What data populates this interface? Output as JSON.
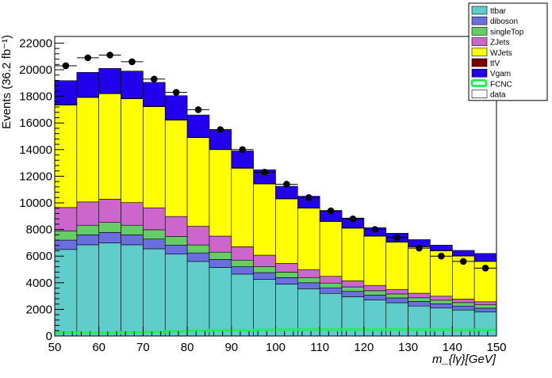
{
  "chart_data": {
    "type": "bar",
    "stacked": true,
    "title": "",
    "xlabel": "m_{lγ}[GeV]",
    "ylabel": "Events (36.2 fb⁻¹)",
    "xlim": [
      50,
      150
    ],
    "ylim": [
      0,
      22500
    ],
    "x_bin_edges": [
      50,
      55,
      60,
      65,
      70,
      75,
      80,
      85,
      90,
      95,
      100,
      105,
      110,
      115,
      120,
      125,
      130,
      135,
      140,
      145,
      150
    ],
    "x_ticks": [
      "50",
      "60",
      "70",
      "80",
      "90",
      "100",
      "110",
      "120",
      "130",
      "140",
      "150"
    ],
    "y_ticks": [
      "0",
      "2000",
      "4000",
      "6000",
      "8000",
      "10000",
      "12000",
      "14000",
      "16000",
      "18000",
      "20000",
      "22000"
    ],
    "legend_position": "top-right",
    "series": [
      {
        "name": "ttbar",
        "color": "#5fcdca",
        "values": [
          6500,
          6850,
          7000,
          6850,
          6550,
          6150,
          5600,
          5150,
          4650,
          4250,
          3900,
          3550,
          3200,
          2950,
          2700,
          2500,
          2250,
          2100,
          1950,
          1800
        ]
      },
      {
        "name": "diboson",
        "color": "#6a6fe0",
        "values": [
          700,
          750,
          780,
          750,
          730,
          680,
          640,
          600,
          550,
          510,
          480,
          450,
          420,
          400,
          380,
          360,
          340,
          320,
          300,
          290
        ]
      },
      {
        "name": "singleTop",
        "color": "#66cc66",
        "values": [
          700,
          720,
          750,
          720,
          700,
          650,
          600,
          550,
          500,
          460,
          420,
          390,
          360,
          340,
          320,
          300,
          280,
          270,
          260,
          250
        ]
      },
      {
        "name": "ZJets",
        "color": "#cc66cc",
        "values": [
          1750,
          1750,
          1750,
          1700,
          1650,
          1500,
          1400,
          1200,
          1000,
          850,
          650,
          600,
          500,
          450,
          400,
          340,
          340,
          300,
          260,
          230
        ]
      },
      {
        "name": "WJets",
        "color": "#ffff00",
        "values": [
          7700,
          7850,
          7920,
          7800,
          7600,
          7230,
          6660,
          6500,
          5900,
          5350,
          4850,
          4610,
          4120,
          3960,
          3700,
          3550,
          3490,
          3410,
          3230,
          3030
        ]
      },
      {
        "name": "ttV",
        "color": "#7a0000",
        "values": [
          30,
          30,
          30,
          30,
          30,
          30,
          30,
          30,
          30,
          30,
          30,
          30,
          30,
          30,
          30,
          30,
          30,
          30,
          30,
          30
        ]
      },
      {
        "name": "Vgam",
        "color": "#2200ee",
        "values": [
          1800,
          1850,
          1870,
          2050,
          1790,
          1810,
          1670,
          1470,
          1270,
          1040,
          920,
          870,
          800,
          730,
          610,
          640,
          510,
          400,
          400,
          570
        ]
      }
    ],
    "fcnc": {
      "name": "FCNC",
      "color": "#22ee55",
      "values": [
        260,
        250,
        240,
        260,
        300,
        350,
        400,
        430,
        450,
        470,
        480,
        490,
        490,
        490,
        490,
        490,
        480,
        480,
        470,
        460
      ]
    },
    "data": {
      "name": "data",
      "x": [
        52.5,
        57.5,
        62.5,
        67.5,
        72.5,
        77.5,
        82.5,
        87.5,
        92.5,
        97.5,
        102.5,
        107.5,
        112.5,
        117.5,
        122.5,
        127.5,
        132.5,
        137.5,
        142.5,
        147.5
      ],
      "values": [
        20300,
        20900,
        21100,
        20600,
        19300,
        18300,
        17000,
        15500,
        14000,
        12300,
        11400,
        10400,
        9400,
        8800,
        8000,
        7400,
        6600,
        6000,
        5600,
        5100
      ]
    }
  }
}
